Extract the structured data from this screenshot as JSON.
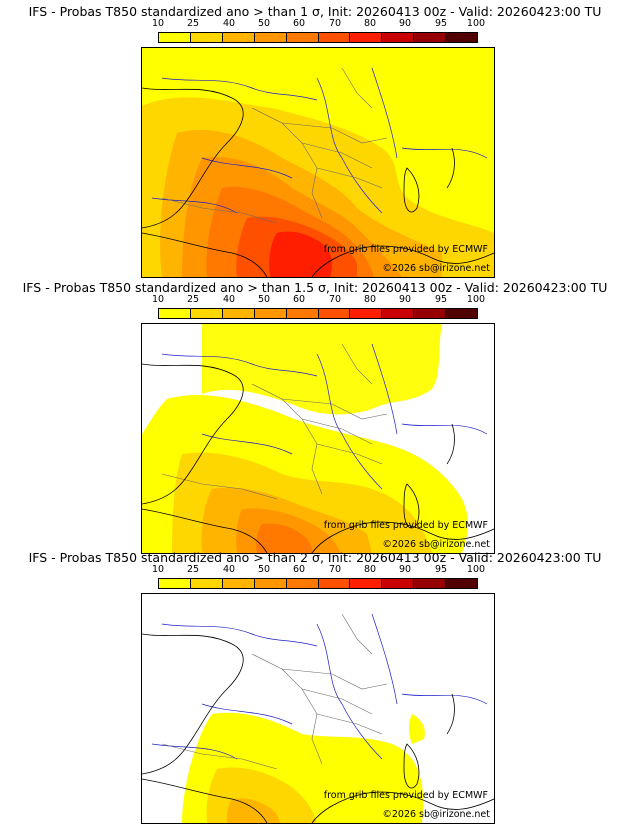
{
  "colorbar": {
    "ticks": [
      "10",
      "25",
      "40",
      "50",
      "60",
      "70",
      "80",
      "90",
      "95",
      "100"
    ],
    "colors": [
      "#ffff00",
      "#ffd700",
      "#ffb400",
      "#ff9600",
      "#ff7800",
      "#ff5000",
      "#ff1e00",
      "#c80000",
      "#960000",
      "#500000"
    ]
  },
  "colors": {
    "coast": "#000000",
    "borders": "#6a6a6a",
    "rivers": "#1e1ec8",
    "background": "#ffffff"
  },
  "panels": [
    {
      "title": "IFS - Probas T850  standardized ano > than 1 σ, Init: 20260413 00z - Valid: 20260423:00 TU",
      "credit": "from grib files provided by ECMWF",
      "copyright": "©2026 sb@irizone.net"
    },
    {
      "title": "IFS - Probas T850  standardized ano > than 1.5 σ, Init: 20260413 00z - Valid: 20260423:00 TU",
      "credit": "from grib files provided by ECMWF",
      "copyright": "©2026 sb@irizone.net"
    },
    {
      "title": "IFS - Probas T850  standardized ano > than 2 σ, Init: 20260413 00z - Valid: 20260423:00 TU",
      "credit": "from grib files provided by ECMWF",
      "copyright": "©2026 sb@irizone.net"
    }
  ]
}
